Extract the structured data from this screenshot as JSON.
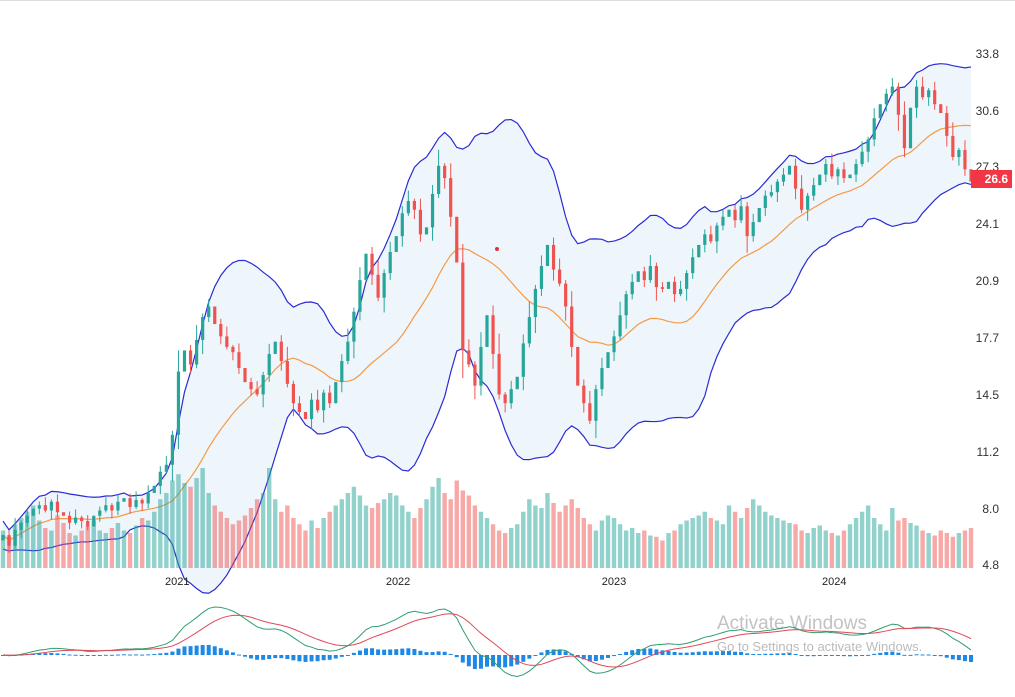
{
  "chart_data": {
    "type": "candlestick",
    "title": "",
    "interval": "weekly",
    "ylim": [
      4.8,
      33.8
    ],
    "yticks": [
      "33.8",
      "30.6",
      "27.3",
      "24.1",
      "20.9",
      "17.7",
      "14.5",
      "11.2",
      "8.0",
      "4.8"
    ],
    "xticks": [
      {
        "label": "2021",
        "index": 28.8
      },
      {
        "label": "2022",
        "index": 65.3
      },
      {
        "label": "2023",
        "index": 101
      },
      {
        "label": "2024",
        "index": 137.4
      }
    ],
    "last_price": "26.6",
    "closes": [
      6.5,
      5.9,
      6.8,
      7.2,
      7.6,
      8.0,
      8.2,
      7.9,
      8.4,
      7.8,
      7.6,
      7.2,
      7.5,
      7.3,
      7.0,
      7.6,
      7.9,
      8.2,
      7.9,
      8.4,
      8.6,
      8.1,
      8.5,
      8.3,
      8.9,
      9.3,
      10.1,
      10.5,
      12.2,
      15.8,
      17.0,
      16.2,
      17.6,
      18.9,
      19.5,
      18.5,
      17.8,
      17.2,
      16.9,
      16.0,
      15.2,
      14.8,
      14.5,
      15.6,
      16.8,
      17.5,
      16.4,
      15.1,
      14.0,
      13.5,
      13.1,
      14.2,
      13.6,
      14.6,
      14.0,
      15.2,
      16.4,
      17.5,
      19.2,
      21.0,
      22.5,
      21.3,
      20.0,
      21.4,
      22.6,
      23.5,
      24.8,
      25.5,
      25.0,
      23.6,
      24.0,
      25.9,
      27.5,
      26.8,
      24.6,
      22.0,
      17.0,
      16.2,
      15.0,
      17.2,
      19.0,
      16.8,
      14.5,
      14.0,
      14.8,
      15.5,
      17.4,
      18.9,
      20.5,
      21.8,
      23.0,
      21.6,
      20.8,
      19.5,
      17.2,
      15.0,
      14.0,
      13.0,
      14.8,
      16.0,
      16.9,
      17.8,
      19.0,
      20.2,
      20.9,
      21.5,
      21.0,
      21.8,
      20.6,
      20.5,
      20.9,
      20.2,
      20.5,
      21.4,
      22.3,
      23.0,
      23.6,
      23.2,
      24.1,
      24.6,
      25.0,
      24.4,
      25.2,
      23.5,
      24.3,
      25.1,
      25.8,
      26.0,
      26.6,
      27.0,
      27.5,
      26.2,
      25.0,
      25.8,
      26.4,
      27.0,
      27.6,
      26.9,
      27.3,
      26.8,
      27.0,
      27.6,
      28.3,
      29.0,
      30.2,
      31.0,
      31.6,
      32.0,
      30.4,
      28.5,
      30.8,
      32.0,
      31.4,
      31.8,
      31.0,
      30.5,
      29.2,
      28.0,
      28.4,
      27.3,
      26.6
    ],
    "volumes": [
      30,
      25,
      35,
      40,
      45,
      50,
      38,
      32,
      30,
      42,
      36,
      28,
      26,
      30,
      34,
      38,
      30,
      28,
      32,
      36,
      30,
      28,
      34,
      40,
      38,
      45,
      55,
      60,
      70,
      75,
      68,
      65,
      72,
      80,
      60,
      50,
      45,
      40,
      35,
      38,
      42,
      48,
      55,
      60,
      80,
      55,
      45,
      50,
      40,
      35,
      30,
      38,
      32,
      40,
      45,
      50,
      55,
      60,
      65,
      58,
      50,
      48,
      52,
      55,
      60,
      58,
      50,
      45,
      40,
      48,
      55,
      65,
      72,
      60,
      55,
      70,
      62,
      58,
      50,
      45,
      40,
      35,
      30,
      28,
      32,
      35,
      45,
      55,
      50,
      48,
      60,
      52,
      45,
      50,
      55,
      48,
      40,
      35,
      30,
      38,
      42,
      40,
      35,
      30,
      32,
      28,
      30,
      26,
      25,
      22,
      28,
      30,
      35,
      38,
      40,
      42,
      45,
      40,
      38,
      35,
      50,
      45,
      40,
      48,
      55,
      50,
      45,
      42,
      40,
      38,
      36,
      35,
      30,
      28,
      32,
      34,
      30,
      28,
      26,
      30,
      35,
      40,
      45,
      50,
      40,
      35,
      30,
      48,
      38,
      40,
      36,
      34,
      30,
      28,
      26,
      30,
      28,
      25,
      28,
      30,
      32
    ],
    "indicators": [
      "Bollinger Bands (20, 2)",
      "Volume",
      "MACD (12, 26, 9)"
    ],
    "colors": {
      "up": "#26a69a",
      "down": "#ef5350",
      "band": "#2b2bd4",
      "basis": "#f59a45",
      "fill": "#eef5fb",
      "hist": "#1e88e5",
      "macd": "#2e9e6e",
      "signal": "#e04858"
    }
  },
  "watermark": {
    "line1": "Activate Windows",
    "line2": "Go to Settings to activate Windows."
  }
}
